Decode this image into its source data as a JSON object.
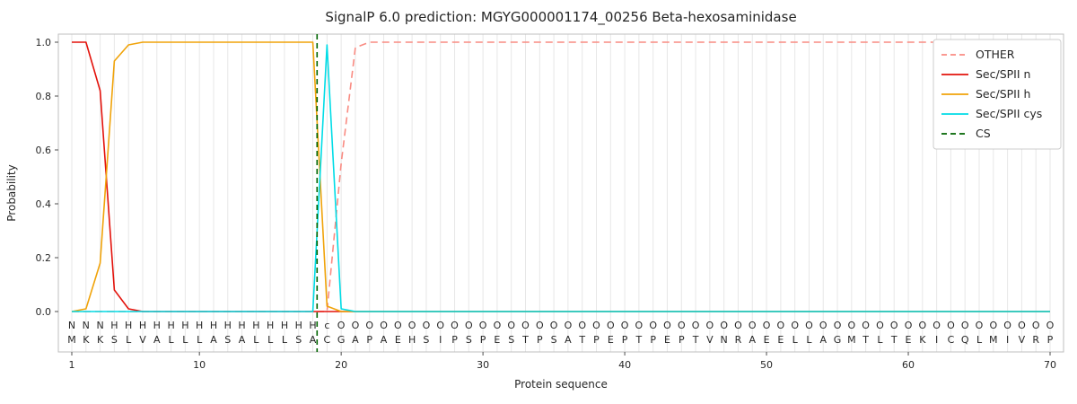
{
  "chart_data": {
    "type": "line",
    "title": "SignalP 6.0 prediction: MGYG000001174_00256 Beta-hexosaminidase",
    "xlabel": "Protein sequence",
    "ylabel": "Probability",
    "xticks": [
      1,
      10,
      20,
      30,
      40,
      50,
      60,
      70
    ],
    "yticks": [
      0.0,
      0.2,
      0.4,
      0.6,
      0.8,
      1.0
    ],
    "ylim": [
      0,
      1.05
    ],
    "grid": "vertical-per-residue",
    "legend_position": "upper-right",
    "sequence": "MKKSLVALLLASALLLSACGAPAEHSIPSPESTPSATPEPTPEPTVNRAEELLAGMTLTEKICQLMIVRP",
    "region_labels": "NNNHHHHHHHHHHHHHHHcOOOOOOOOOOOOOOOOOOOOOOOOOOOOOOOOOOOOOOOOOOOOOOOOOOO",
    "label_colors": {
      "N": "#e3120b",
      "H": "#f0a30a",
      "c": "#00cdd8",
      "O": "#9e9e9e"
    },
    "cs_position": 18.3,
    "series": [
      {
        "name": "OTHER",
        "style": "dashed",
        "color": "#f98b82",
        "values": [
          0,
          0,
          0,
          0,
          0,
          0,
          0,
          0,
          0,
          0,
          0,
          0,
          0,
          0,
          0,
          0,
          0,
          0,
          0,
          0.55,
          0.98,
          1,
          1,
          1,
          1,
          1,
          1,
          1,
          1,
          1,
          1,
          1,
          1,
          1,
          1,
          1,
          1,
          1,
          1,
          1,
          1,
          1,
          1,
          1,
          1,
          1,
          1,
          1,
          1,
          1,
          1,
          1,
          1,
          1,
          1,
          1,
          1,
          1,
          1,
          1,
          1,
          1,
          1,
          1,
          1,
          1,
          1,
          1,
          1,
          1
        ]
      },
      {
        "name": "Sec/SPII n",
        "style": "solid",
        "color": "#e3120b",
        "values": [
          1,
          1,
          0.82,
          0.08,
          0.01,
          0,
          0,
          0,
          0,
          0,
          0,
          0,
          0,
          0,
          0,
          0,
          0,
          0,
          0,
          0,
          0,
          0,
          0,
          0,
          0,
          0,
          0,
          0,
          0,
          0,
          0,
          0,
          0,
          0,
          0,
          0,
          0,
          0,
          0,
          0,
          0,
          0,
          0,
          0,
          0,
          0,
          0,
          0,
          0,
          0,
          0,
          0,
          0,
          0,
          0,
          0,
          0,
          0,
          0,
          0,
          0,
          0,
          0,
          0,
          0,
          0,
          0,
          0,
          0,
          0
        ]
      },
      {
        "name": "Sec/SPII h",
        "style": "solid",
        "color": "#f0a30a",
        "values": [
          0,
          0.01,
          0.18,
          0.93,
          0.99,
          1,
          1,
          1,
          1,
          1,
          1,
          1,
          1,
          1,
          1,
          1,
          1,
          1,
          0.02,
          0,
          0,
          0,
          0,
          0,
          0,
          0,
          0,
          0,
          0,
          0,
          0,
          0,
          0,
          0,
          0,
          0,
          0,
          0,
          0,
          0,
          0,
          0,
          0,
          0,
          0,
          0,
          0,
          0,
          0,
          0,
          0,
          0,
          0,
          0,
          0,
          0,
          0,
          0,
          0,
          0,
          0,
          0,
          0,
          0,
          0,
          0,
          0,
          0,
          0,
          0
        ]
      },
      {
        "name": "Sec/SPII cys",
        "style": "solid",
        "color": "#00dce6",
        "values": [
          0,
          0,
          0,
          0,
          0,
          0,
          0,
          0,
          0,
          0,
          0,
          0,
          0,
          0,
          0,
          0,
          0,
          0,
          0.99,
          0.01,
          0,
          0,
          0,
          0,
          0,
          0,
          0,
          0,
          0,
          0,
          0,
          0,
          0,
          0,
          0,
          0,
          0,
          0,
          0,
          0,
          0,
          0,
          0,
          0,
          0,
          0,
          0,
          0,
          0,
          0,
          0,
          0,
          0,
          0,
          0,
          0,
          0,
          0,
          0,
          0,
          0,
          0,
          0,
          0,
          0,
          0,
          0,
          0,
          0,
          0
        ]
      }
    ],
    "cs_line": {
      "name": "CS",
      "style": "dashed",
      "color": "#006400"
    },
    "legend": [
      {
        "label": "OTHER",
        "color": "#f98b82",
        "dashed": true
      },
      {
        "label": "Sec/SPII n",
        "color": "#e3120b",
        "dashed": false
      },
      {
        "label": "Sec/SPII h",
        "color": "#f0a30a",
        "dashed": false
      },
      {
        "label": "Sec/SPII cys",
        "color": "#00dce6",
        "dashed": false
      },
      {
        "label": "CS",
        "color": "#006400",
        "dashed": true
      }
    ],
    "colors": {
      "grid": "#e7e7e7",
      "spine": "#bfbfbf",
      "tick": "#4d4d4d",
      "sequence_text": "#1a1a1a"
    }
  }
}
